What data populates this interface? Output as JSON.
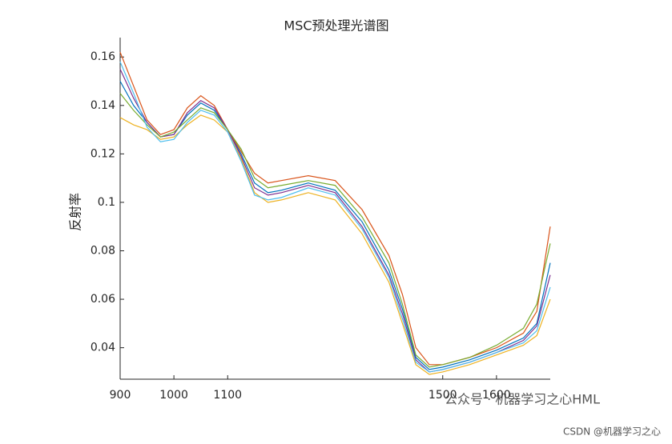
{
  "chart_data": {
    "type": "line",
    "title": "MSC预处理光谱图",
    "ylabel": "反射率",
    "x": [
      900,
      925,
      950,
      975,
      1000,
      1025,
      1050,
      1075,
      1100,
      1125,
      1150,
      1175,
      1200,
      1250,
      1300,
      1350,
      1400,
      1425,
      1450,
      1475,
      1500,
      1550,
      1600,
      1650,
      1675,
      1700
    ],
    "series": [
      {
        "color": "#0072bd",
        "values": [
          0.15,
          0.14,
          0.133,
          0.127,
          0.128,
          0.136,
          0.141,
          0.138,
          0.13,
          0.12,
          0.108,
          0.104,
          0.105,
          0.108,
          0.105,
          0.092,
          0.072,
          0.056,
          0.036,
          0.031,
          0.032,
          0.035,
          0.039,
          0.044,
          0.05,
          0.075
        ]
      },
      {
        "color": "#d95319",
        "values": [
          0.162,
          0.148,
          0.134,
          0.128,
          0.13,
          0.139,
          0.144,
          0.14,
          0.13,
          0.121,
          0.112,
          0.108,
          0.109,
          0.111,
          0.109,
          0.097,
          0.078,
          0.062,
          0.04,
          0.033,
          0.033,
          0.036,
          0.04,
          0.046,
          0.055,
          0.09
        ]
      },
      {
        "color": "#edb120",
        "values": [
          0.135,
          0.132,
          0.13,
          0.126,
          0.127,
          0.132,
          0.136,
          0.134,
          0.129,
          0.118,
          0.104,
          0.1,
          0.101,
          0.104,
          0.101,
          0.087,
          0.067,
          0.05,
          0.033,
          0.029,
          0.03,
          0.033,
          0.037,
          0.041,
          0.045,
          0.06
        ]
      },
      {
        "color": "#7e2f8e",
        "values": [
          0.155,
          0.143,
          0.133,
          0.127,
          0.128,
          0.137,
          0.142,
          0.139,
          0.13,
          0.119,
          0.106,
          0.103,
          0.104,
          0.107,
          0.104,
          0.09,
          0.07,
          0.054,
          0.035,
          0.03,
          0.031,
          0.034,
          0.038,
          0.043,
          0.049,
          0.07
        ]
      },
      {
        "color": "#77ac30",
        "values": [
          0.145,
          0.138,
          0.132,
          0.127,
          0.129,
          0.134,
          0.139,
          0.137,
          0.13,
          0.122,
          0.11,
          0.106,
          0.107,
          0.109,
          0.107,
          0.094,
          0.075,
          0.058,
          0.037,
          0.032,
          0.033,
          0.036,
          0.041,
          0.048,
          0.058,
          0.083
        ]
      },
      {
        "color": "#4dbeee",
        "values": [
          0.158,
          0.145,
          0.131,
          0.125,
          0.126,
          0.133,
          0.138,
          0.136,
          0.129,
          0.117,
          0.103,
          0.101,
          0.102,
          0.106,
          0.103,
          0.089,
          0.069,
          0.052,
          0.034,
          0.03,
          0.031,
          0.034,
          0.038,
          0.042,
          0.047,
          0.065
        ]
      }
    ],
    "xlim": [
      900,
      1700
    ],
    "xticks": [
      900,
      1000,
      1100,
      1500,
      1600
    ],
    "ylim": [
      0.027,
      0.168
    ],
    "yticks": [
      0.04,
      0.06,
      0.08,
      0.1,
      0.12,
      0.14,
      0.16
    ],
    "grid": false,
    "annotations": [
      "公众号 · 机器学习之心HML",
      "CSDN @机器学习之心"
    ]
  }
}
